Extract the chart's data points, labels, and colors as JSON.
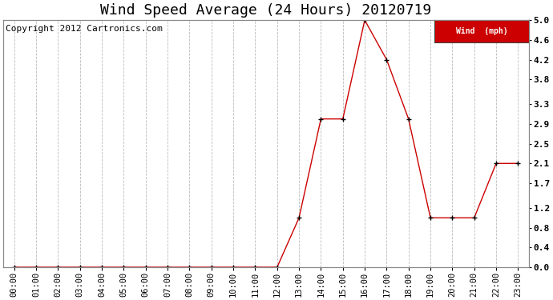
{
  "title": "Wind Speed Average (24 Hours) 20120719",
  "copyright": "Copyright 2012 Cartronics.com",
  "legend_label": "Wind  (mph)",
  "x_labels": [
    "00:00",
    "01:00",
    "02:00",
    "03:00",
    "04:00",
    "05:00",
    "06:00",
    "07:00",
    "08:00",
    "09:00",
    "10:00",
    "11:00",
    "12:00",
    "13:00",
    "14:00",
    "15:00",
    "16:00",
    "17:00",
    "18:00",
    "19:00",
    "20:00",
    "21:00",
    "22:00",
    "23:00"
  ],
  "x_values": [
    0,
    1,
    2,
    3,
    4,
    5,
    6,
    7,
    8,
    9,
    10,
    11,
    12,
    13,
    14,
    15,
    16,
    17,
    18,
    19,
    20,
    21,
    22,
    23
  ],
  "y_values": [
    0.0,
    0.0,
    0.0,
    0.0,
    0.0,
    0.0,
    0.0,
    0.0,
    0.0,
    0.0,
    0.0,
    0.0,
    0.0,
    1.0,
    3.0,
    3.0,
    5.0,
    4.2,
    3.0,
    1.0,
    1.0,
    1.0,
    2.1,
    2.1
  ],
  "y_ticks": [
    0.0,
    0.4,
    0.8,
    1.2,
    1.7,
    2.1,
    2.5,
    2.9,
    3.3,
    3.8,
    4.2,
    4.6,
    5.0
  ],
  "ylim": [
    0.0,
    5.0
  ],
  "line_color": "#cc0000",
  "marker_color": "#000000",
  "legend_bg": "#cc0000",
  "legend_text_color": "#ffffff",
  "background_color": "#ffffff",
  "grid_color": "#bbbbbb",
  "title_fontsize": 13,
  "copyright_fontsize": 8,
  "tick_fontsize": 7.5,
  "ytick_fontsize": 8
}
